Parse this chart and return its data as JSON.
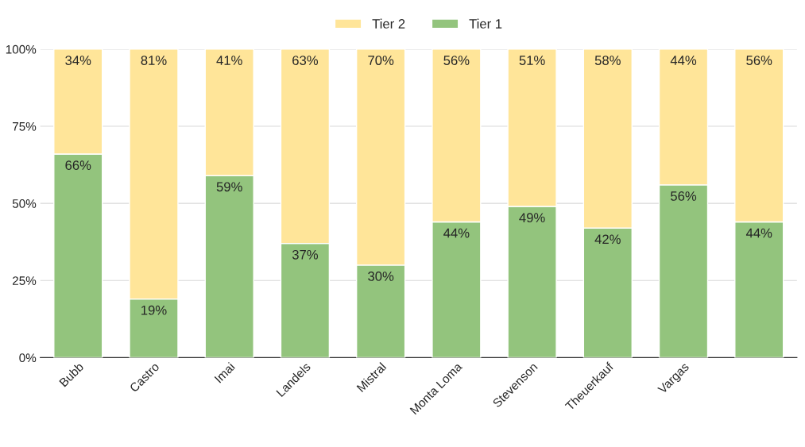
{
  "chart_data": {
    "type": "bar",
    "stacked": true,
    "categories": [
      "Bubb",
      "Castro",
      "Imai",
      "Landels",
      "Mistral",
      "Monta Loma",
      "Stevenson",
      "Theuerkauf",
      "Vargas",
      null
    ],
    "series": [
      {
        "name": "Tier 1",
        "color": "#93c47d",
        "values": [
          66,
          19,
          59,
          37,
          30,
          44,
          49,
          42,
          56,
          44
        ],
        "value_labels": [
          "66%",
          "19%",
          "59%",
          "37%",
          "30%",
          "44%",
          "49%",
          "42%",
          "56%",
          "44%"
        ]
      },
      {
        "name": "Tier 2",
        "color": "#ffe599",
        "values": [
          34,
          81,
          41,
          63,
          70,
          56,
          51,
          58,
          44,
          56
        ],
        "value_labels": [
          "34%",
          "81%",
          "41%",
          "63%",
          "70%",
          "56%",
          "51%",
          "58%",
          "44%",
          "56%"
        ]
      }
    ],
    "ylim": [
      0,
      100
    ],
    "yticks": [
      {
        "value": 0,
        "label": "0%"
      },
      {
        "value": 25,
        "label": "25%"
      },
      {
        "value": 50,
        "label": "50%"
      },
      {
        "value": 75,
        "label": "75%"
      },
      {
        "value": 100,
        "label": "100%"
      }
    ],
    "grid": "y",
    "legend": "top"
  }
}
